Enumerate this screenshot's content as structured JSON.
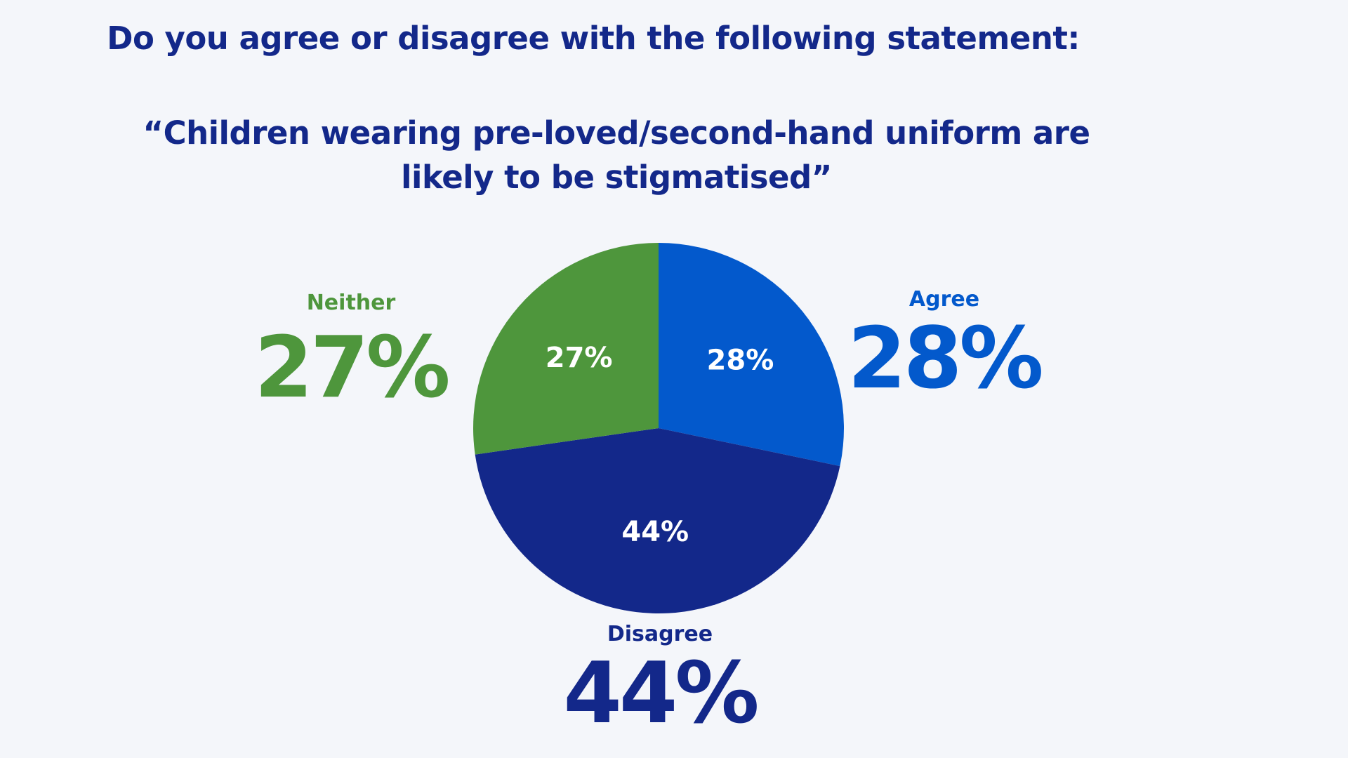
{
  "question": {
    "line1": "Do you agree or disagree with the following statement:",
    "statement_line1": "“Children wearing pre-loved/second-hand uniform are",
    "statement_line2": "likely to be stigmatised”"
  },
  "chart_data": {
    "type": "pie",
    "title": "Do you agree or disagree with the following statement: “Children wearing pre-loved/second-hand uniform are likely to be stigmatised”",
    "start": "top",
    "direction": "clockwise",
    "categories": [
      "Agree",
      "Disagree",
      "Neither"
    ],
    "values": [
      28,
      44,
      27
    ],
    "value_labels": [
      "28%",
      "44%",
      "27%"
    ],
    "colors": [
      "#0359cc",
      "#13288a",
      "#4e963c"
    ],
    "label_color": "#ffffff"
  },
  "callouts": {
    "neither": {
      "label": "Neither",
      "value": "27%"
    },
    "agree": {
      "label": "Agree",
      "value": "28%"
    },
    "disagree": {
      "label": "Disagree",
      "value": "44%"
    }
  }
}
